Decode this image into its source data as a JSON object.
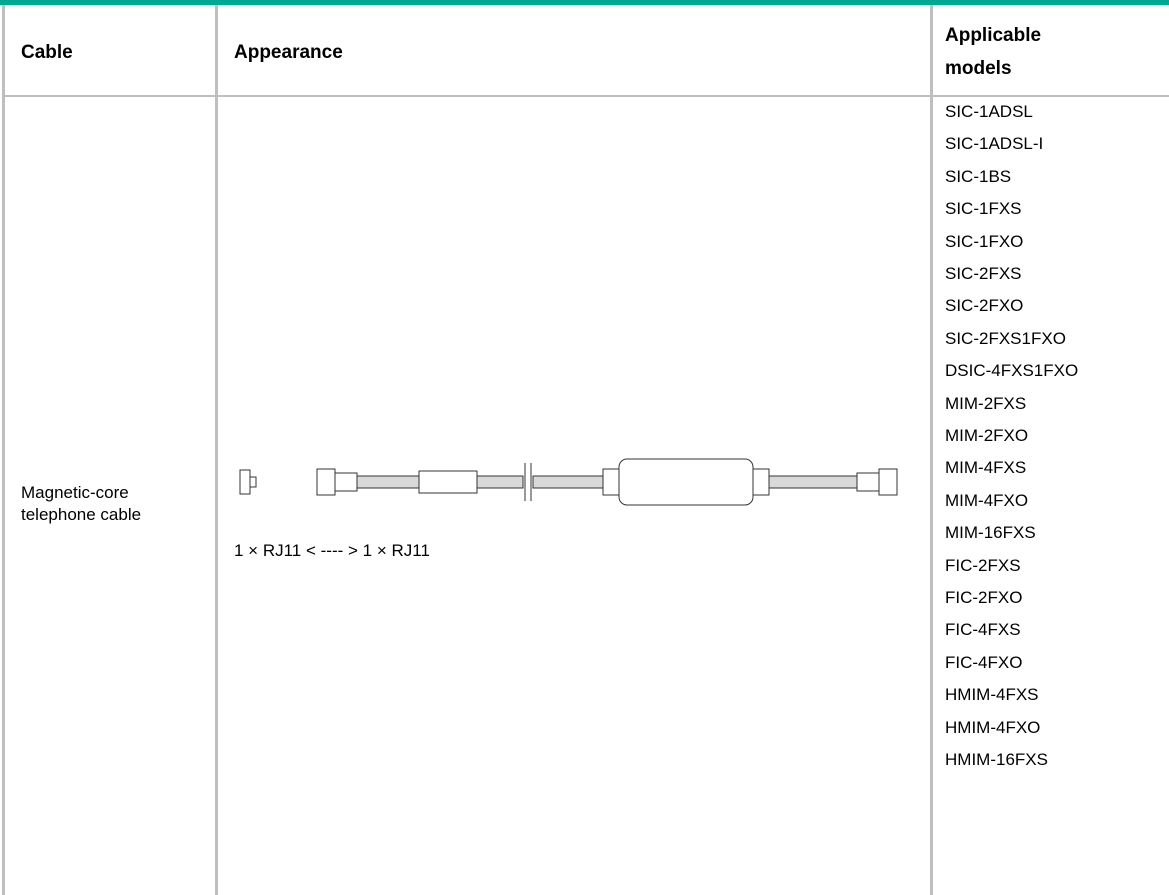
{
  "table": {
    "header": [
      "Cable",
      "Appearance",
      "Applicable models"
    ],
    "rows": [
      {
        "cable": "Magnetic-core telephone cable",
        "appearance_caption": "1 × RJ11 < ---- > 1 × RJ11",
        "models": [
          "SIC-1ADSL",
          "SIC-1ADSL-I",
          "SIC-1BS",
          "SIC-1FXS",
          "SIC-1FXO",
          "SIC-2FXS",
          "SIC-2FXO",
          "SIC-2FXS1FXO",
          "DSIC-4FXS1FXO",
          "MIM-2FXS",
          "MIM-2FXO",
          "MIM-4FXS",
          "MIM-4FXO",
          "MIM-16FXS",
          "FIC-2FXS",
          "FIC-2FXO",
          "FIC-4FXS",
          "FIC-4FXO",
          "HMIM-4FXS",
          "HMIM-4FXO",
          "HMIM-16FXS"
        ]
      }
    ]
  }
}
